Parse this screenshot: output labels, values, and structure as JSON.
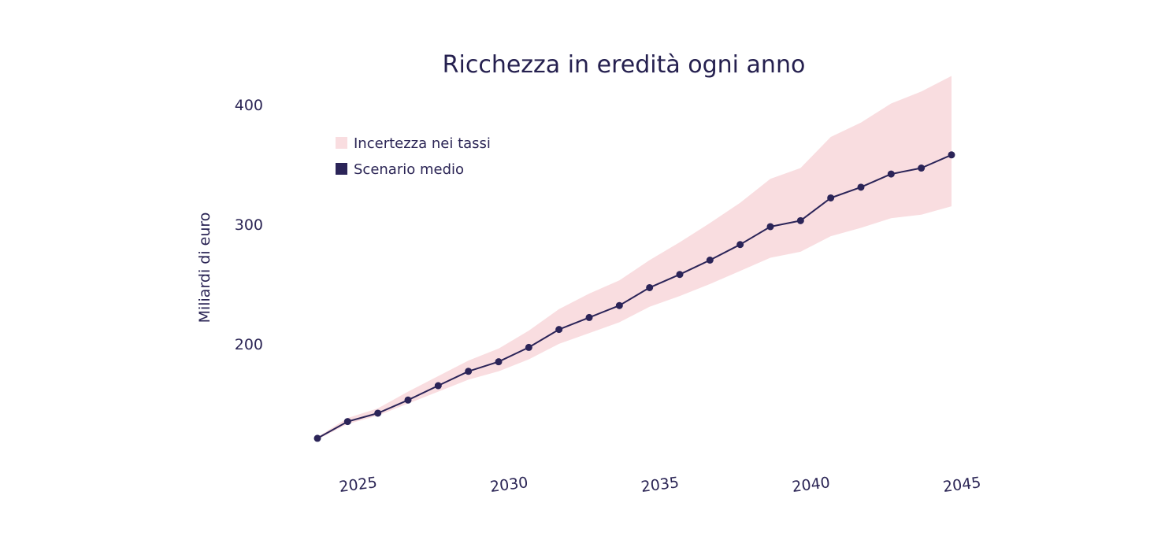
{
  "chart_data": {
    "type": "line",
    "title": "Ricchezza in eredità ogni anno",
    "xlabel": "",
    "ylabel": "Miliardi di euro",
    "xlim": [
      2024,
      2045
    ],
    "ylim": [
      115,
      425
    ],
    "x_ticks": [
      2025,
      2030,
      2035,
      2040,
      2045
    ],
    "y_ticks": [
      200,
      300,
      400
    ],
    "grid": false,
    "legend_position": "top-left",
    "colors": {
      "line": "#2b2458",
      "band": "#f9dde0",
      "text": "#2b2555"
    },
    "series": [
      {
        "name": "Scenario medio",
        "x": [
          2024,
          2025,
          2026,
          2027,
          2028,
          2029,
          2030,
          2031,
          2032,
          2033,
          2034,
          2035,
          2036,
          2037,
          2038,
          2039,
          2040,
          2041,
          2042,
          2043,
          2044,
          2045
        ],
        "values": [
          121,
          135,
          142,
          153,
          165,
          177,
          185,
          197,
          212,
          222,
          232,
          247,
          258,
          270,
          283,
          298,
          303,
          322,
          331,
          342,
          347,
          358
        ]
      }
    ],
    "band": {
      "name": "Incertezza nei tassi",
      "x": [
        2024,
        2025,
        2026,
        2027,
        2028,
        2029,
        2030,
        2031,
        2032,
        2033,
        2034,
        2035,
        2036,
        2037,
        2038,
        2039,
        2040,
        2041,
        2042,
        2043,
        2044,
        2045
      ],
      "lower": [
        120,
        133,
        140,
        150,
        160,
        170,
        177,
        187,
        200,
        209,
        218,
        231,
        240,
        250,
        261,
        272,
        277,
        290,
        297,
        305,
        308,
        315
      ],
      "upper": [
        122,
        138,
        146,
        160,
        173,
        186,
        196,
        211,
        229,
        242,
        253,
        270,
        285,
        301,
        318,
        338,
        347,
        373,
        385,
        401,
        411,
        424
      ]
    }
  }
}
